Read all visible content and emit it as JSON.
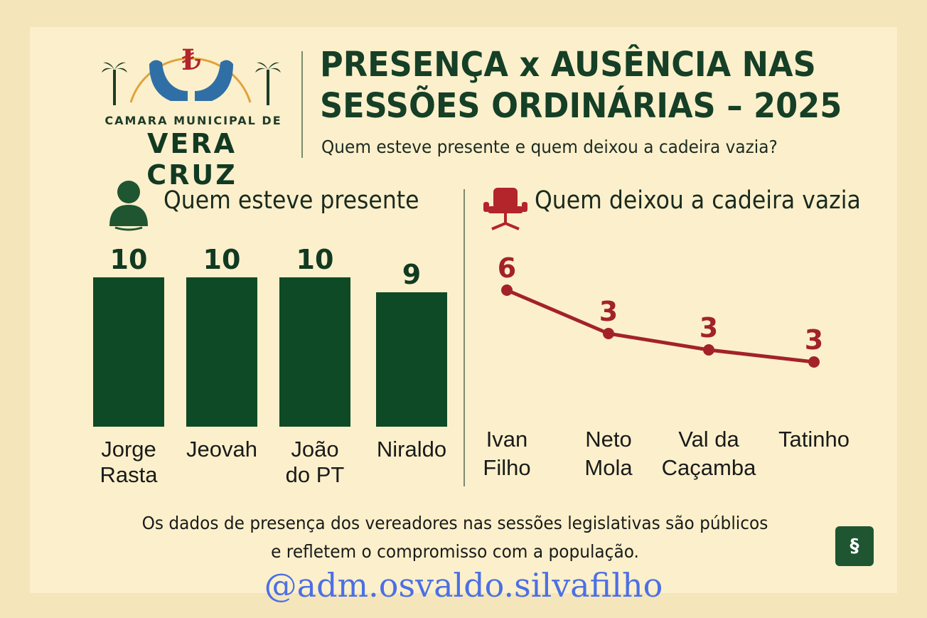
{
  "logo": {
    "line1": "CAMARA MUNICIPAL DE",
    "line2": "VERA CRUZ",
    "icon": "hands-emblem-icon"
  },
  "header": {
    "title_line1": "PRESENÇA x AUSÊNCIA NAS",
    "title_line2": "SESSÕES ORDINÁRIAS – 2025",
    "subtitle": "Quem esteve presente e quem deixou a cadeira vazia?"
  },
  "sections": {
    "left_title": "Quem esteve presente",
    "left_icon": "person-icon",
    "right_title": "Quem deixou a cadeira vazia",
    "right_icon": "chair-icon"
  },
  "chart_data": [
    {
      "type": "bar",
      "title": "Quem esteve presente",
      "categories": [
        [
          "Jorge",
          "Rasta"
        ],
        [
          "Jeovah"
        ],
        [
          "João",
          "do PT"
        ],
        [
          "Niraldo"
        ]
      ],
      "values": [
        10,
        10,
        10,
        9
      ],
      "ylim": [
        0,
        10
      ],
      "color": "#0f4a26",
      "grid": false
    },
    {
      "type": "line",
      "title": "Quem deixou a cadeira vazia",
      "categories": [
        [
          "Ivan",
          "Filho"
        ],
        [
          "Neto",
          "Mola"
        ],
        [
          "Val da",
          "Caçamba"
        ],
        [
          "Tatinho"
        ]
      ],
      "values": [
        6,
        3,
        3,
        3
      ],
      "color": "#a3222a",
      "grid": false
    }
  ],
  "footer": {
    "note_line1": "Os dados de presença dos vereadores nas sessões legislativas são públicos",
    "note_line2": "e refletem o compromisso com a população.",
    "badge": "§",
    "handle": "@adm.osvaldo.silvafilho"
  }
}
